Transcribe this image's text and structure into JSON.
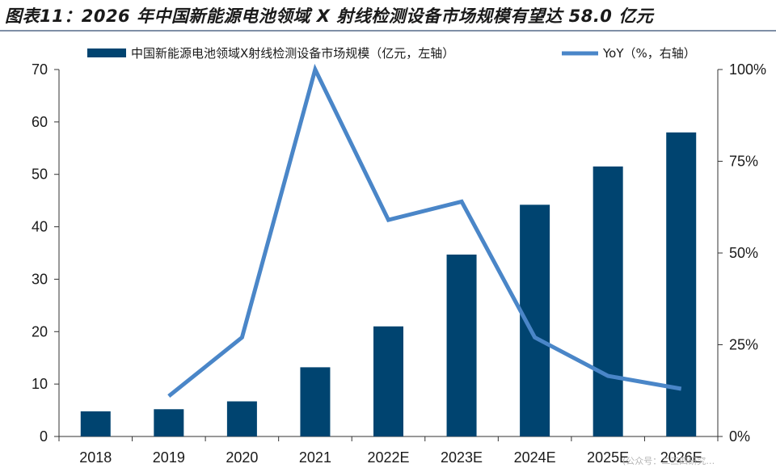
{
  "title": "图表11：2026 年中国新能源电池领域 X 射线检测设备市场规模有望达 58.0 亿元",
  "watermark": "(公众号：二三四研究…",
  "colors": {
    "bar": "#004470",
    "line": "#4a86c8",
    "axis": "#333333",
    "title_rule": "#7f8fa6"
  },
  "chart_data": {
    "type": "bar+line",
    "categories": [
      "2018",
      "2019",
      "2020",
      "2021",
      "2022E",
      "2023E",
      "2024E",
      "2025E",
      "2026E"
    ],
    "series": [
      {
        "name": "中国新能源电池领域X射线检测设备市场规模（亿元，左轴）",
        "type": "bar",
        "axis": "left",
        "values": [
          4.8,
          5.2,
          6.7,
          13.2,
          21.0,
          34.7,
          44.2,
          51.5,
          58.0
        ]
      },
      {
        "name": "YoY（%，右轴）",
        "type": "line",
        "axis": "right",
        "values": [
          null,
          0.11,
          0.27,
          1.0,
          0.59,
          0.64,
          0.27,
          0.165,
          0.13
        ]
      }
    ],
    "left_axis": {
      "ylim": [
        0,
        70
      ],
      "ticks": [
        "0",
        "10",
        "20",
        "30",
        "40",
        "50",
        "60",
        "70"
      ]
    },
    "right_axis": {
      "ylim": [
        0,
        1.0
      ],
      "ticks": [
        "0%",
        "25%",
        "50%",
        "75%",
        "100%"
      ]
    },
    "legend_position": "top"
  }
}
